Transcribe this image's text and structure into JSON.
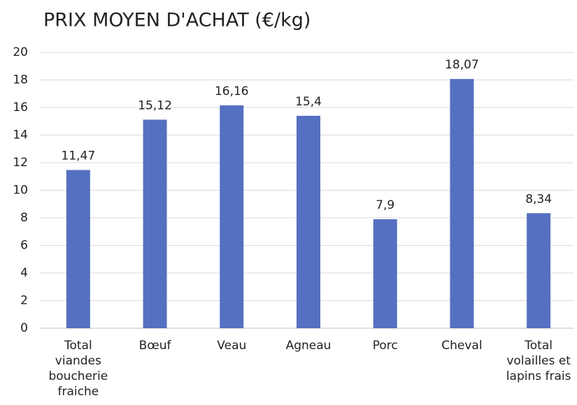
{
  "chart_data": {
    "type": "bar",
    "title": "PRIX MOYEN D'ACHAT (€/kg)",
    "categories": [
      "Total viandes boucherie fraiche",
      "Bœuf",
      "Veau",
      "Agneau",
      "Porc",
      "Cheval",
      "Total volailles et lapins frais"
    ],
    "values": [
      11.47,
      15.12,
      16.16,
      15.4,
      7.9,
      18.07,
      8.34
    ],
    "value_labels": [
      "11,47",
      "15,12",
      "16,16",
      "15,4",
      "7,9",
      "18,07",
      "8,34"
    ],
    "color": "#5570c1",
    "ylim": [
      0,
      20
    ],
    "yticks": [
      0,
      2,
      4,
      6,
      8,
      10,
      12,
      14,
      16,
      18,
      20
    ],
    "grid": true
  }
}
